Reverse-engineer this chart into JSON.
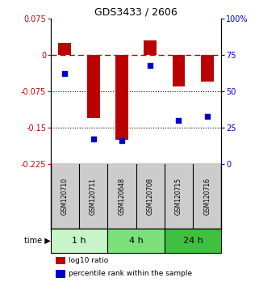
{
  "title": "GDS3433 / 2606",
  "samples": [
    "GSM120710",
    "GSM120711",
    "GSM120648",
    "GSM120708",
    "GSM120715",
    "GSM120716"
  ],
  "bar_values": [
    0.025,
    -0.13,
    -0.175,
    0.03,
    -0.065,
    -0.055
  ],
  "dot_values": [
    62,
    17,
    16,
    68,
    30,
    33
  ],
  "ylim_left": [
    -0.225,
    0.075
  ],
  "ylim_right": [
    0,
    100
  ],
  "yticks_left": [
    0.075,
    0,
    -0.075,
    -0.15,
    -0.225
  ],
  "ytick_labels_left": [
    "0.075",
    "0",
    "-0.075",
    "-0.15",
    "-0.225"
  ],
  "yticks_right": [
    100,
    75,
    50,
    25,
    0
  ],
  "ytick_labels_right": [
    "100%",
    "75",
    "50",
    "25",
    "0"
  ],
  "time_groups": [
    {
      "label": "1 h",
      "start": 0,
      "end": 2,
      "color": "#c8f5c8"
    },
    {
      "label": "4 h",
      "start": 2,
      "end": 4,
      "color": "#7de07d"
    },
    {
      "label": "24 h",
      "start": 4,
      "end": 6,
      "color": "#40c040"
    }
  ],
  "bar_color": "#bb0000",
  "dot_color": "#0000cc",
  "bar_width": 0.45,
  "hline_y": 0,
  "dotted_lines": [
    -0.075,
    -0.15
  ],
  "legend_bar_label": "log10 ratio",
  "legend_dot_label": "percentile rank within the sample",
  "background_color": "#ffffff"
}
